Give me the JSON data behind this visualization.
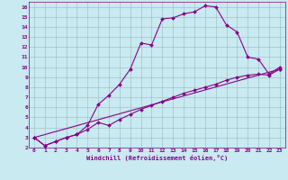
{
  "xlabel": "Windchill (Refroidissement éolien,°C)",
  "bg_color": "#c8eaf0",
  "line_color": "#880088",
  "xlim": [
    -0.5,
    23.5
  ],
  "ylim": [
    2,
    16.5
  ],
  "xticks": [
    0,
    1,
    2,
    3,
    4,
    5,
    6,
    7,
    8,
    9,
    10,
    11,
    12,
    13,
    14,
    15,
    16,
    17,
    18,
    19,
    20,
    21,
    22,
    23
  ],
  "yticks": [
    2,
    3,
    4,
    5,
    6,
    7,
    8,
    9,
    10,
    11,
    12,
    13,
    14,
    15,
    16
  ],
  "curve1_x": [
    0,
    1,
    2,
    3,
    4,
    5,
    6,
    7,
    8,
    9,
    10,
    11,
    12,
    13,
    14,
    15,
    16,
    17,
    18,
    19,
    20,
    21,
    22,
    23
  ],
  "curve1_y": [
    3.0,
    2.2,
    2.6,
    3.0,
    3.3,
    4.2,
    6.3,
    7.2,
    8.3,
    9.8,
    12.4,
    12.2,
    14.8,
    14.9,
    15.3,
    15.5,
    16.1,
    16.0,
    14.2,
    13.5,
    11.0,
    10.8,
    9.3,
    10.0
  ],
  "curve2_x": [
    0,
    1,
    2,
    3,
    4,
    5,
    6,
    7,
    8,
    9,
    10,
    11,
    12,
    13,
    14,
    15,
    16,
    17,
    18,
    19,
    20,
    21,
    22,
    23
  ],
  "curve2_y": [
    3.0,
    2.2,
    2.6,
    3.0,
    3.3,
    3.8,
    4.5,
    4.2,
    4.8,
    5.3,
    5.8,
    6.2,
    6.6,
    7.0,
    7.4,
    7.7,
    8.0,
    8.3,
    8.7,
    9.0,
    9.2,
    9.3,
    9.2,
    9.8
  ],
  "curve3_x": [
    0,
    23
  ],
  "curve3_y": [
    3.0,
    9.8
  ],
  "grid_color": "#9ab8c0",
  "markersize": 2.0
}
